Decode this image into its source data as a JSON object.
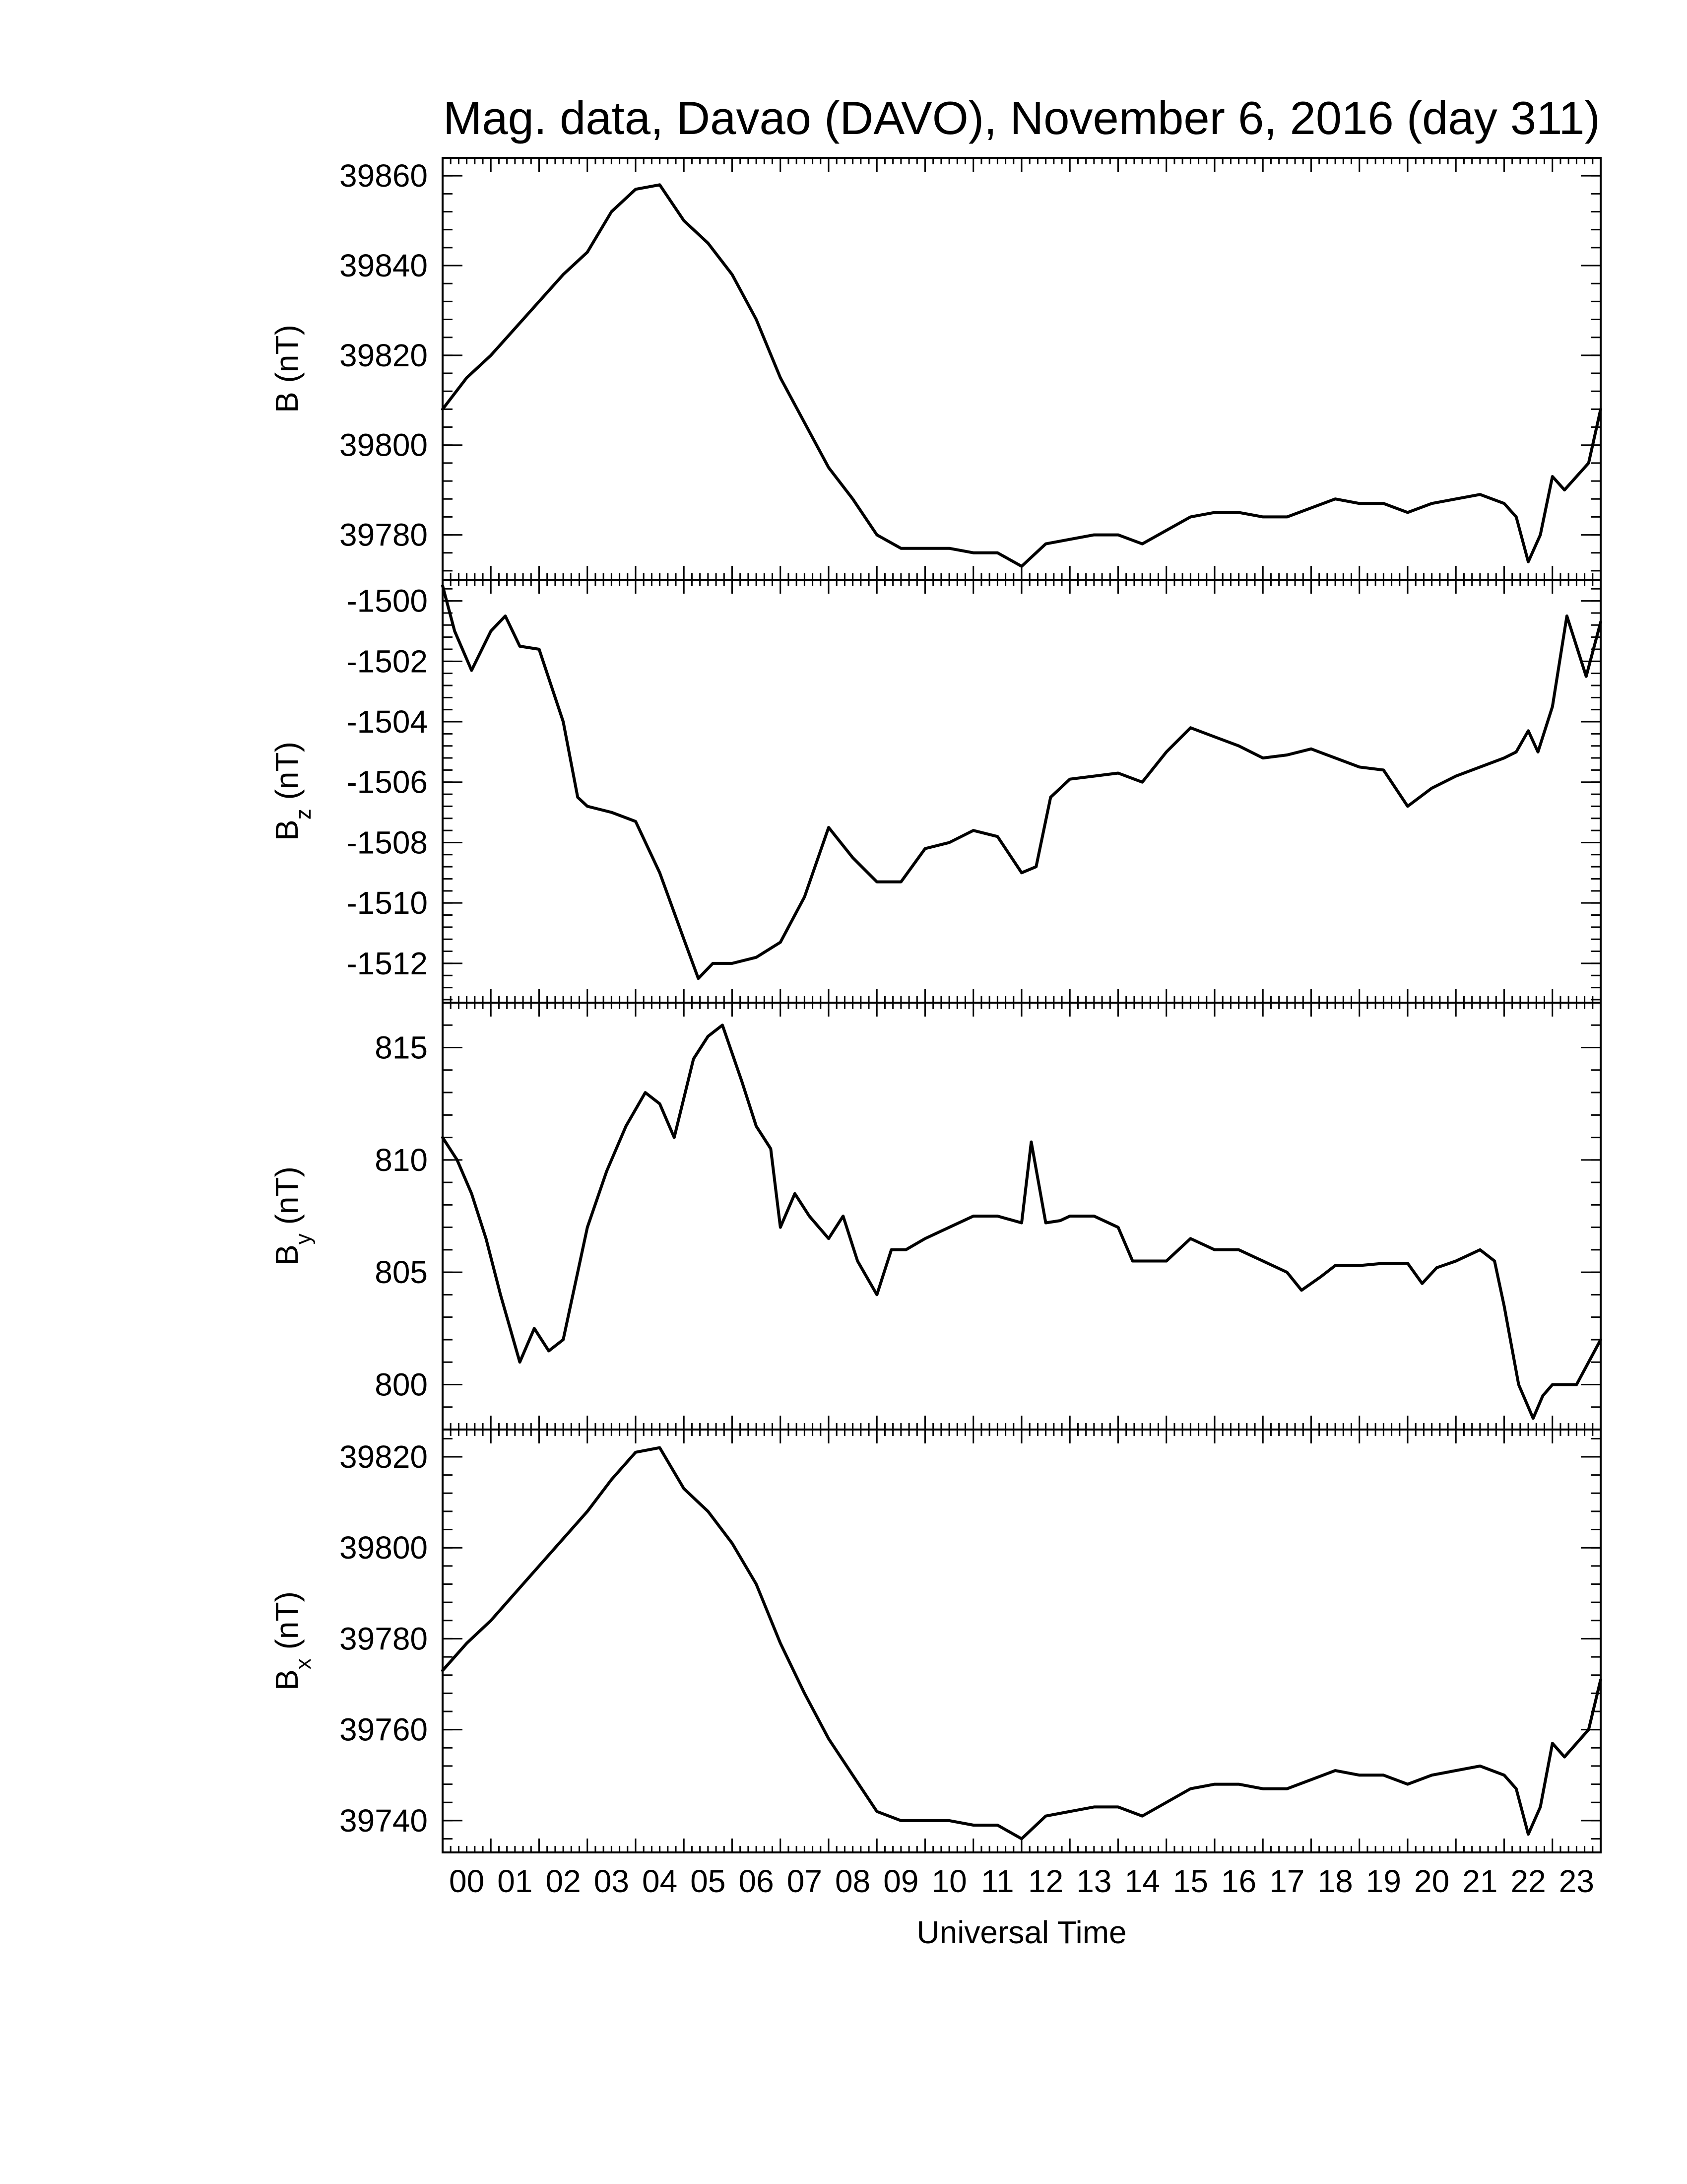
{
  "title": "Mag. data, Davao (DAVO), November 6, 2016 (day 311)",
  "xlabel": "Universal Time",
  "x_tick_labels": [
    "00",
    "01",
    "02",
    "03",
    "04",
    "05",
    "06",
    "07",
    "08",
    "09",
    "10",
    "11",
    "12",
    "13",
    "14",
    "15",
    "16",
    "17",
    "18",
    "19",
    "20",
    "21",
    "22",
    "23"
  ],
  "colors": {
    "line": "#000000",
    "axes": "#000000",
    "background": "#ffffff"
  },
  "chart_data": [
    {
      "type": "line",
      "ylabel": "B (nT)",
      "ylabel_main": "B",
      "ylabel_sub": "",
      "ylabel_unit": " (nT)",
      "xlim": [
        0,
        24
      ],
      "ylim": [
        39770,
        39864
      ],
      "yticks": [
        39780,
        39800,
        39820,
        39840,
        39860
      ],
      "ytick_labels": [
        "39780",
        "39800",
        "39820",
        "39840",
        "39860"
      ],
      "series": [
        {
          "x": [
            0,
            0.5,
            1,
            1.5,
            2,
            2.5,
            3,
            3.5,
            4,
            4.5,
            5,
            5.5,
            6,
            6.5,
            7,
            7.5,
            8,
            8.5,
            9,
            9.5,
            10,
            10.5,
            11,
            11.5,
            12,
            12.5,
            13,
            13.5,
            14,
            14.5,
            15,
            15.5,
            16,
            16.5,
            17,
            17.5,
            18,
            18.5,
            19,
            19.5,
            20,
            20.5,
            21,
            21.5,
            22,
            22.25,
            22.5,
            22.75,
            23,
            23.25,
            23.5,
            23.75,
            24
          ],
          "y": [
            39808,
            39815,
            39820,
            39826,
            39832,
            39838,
            39843,
            39852,
            39857,
            39858,
            39850,
            39845,
            39838,
            39828,
            39815,
            39805,
            39795,
            39788,
            39780,
            39777,
            39777,
            39777,
            39776,
            39776,
            39773,
            39778,
            39779,
            39780,
            39780,
            39778,
            39781,
            39784,
            39785,
            39785,
            39784,
            39784,
            39786,
            39788,
            39787,
            39787,
            39785,
            39787,
            39788,
            39789,
            39787,
            39784,
            39774,
            39780,
            39793,
            39790,
            39793,
            39796,
            39808
          ]
        }
      ]
    },
    {
      "type": "line",
      "ylabel": "Bz (nT)",
      "ylabel_main": "B",
      "ylabel_sub": "z",
      "ylabel_unit": " (nT)",
      "xlim": [
        0,
        24
      ],
      "ylim": [
        -1513.3,
        -1499.3
      ],
      "yticks": [
        -1500,
        -1502,
        -1504,
        -1506,
        -1508,
        -1510,
        -1512
      ],
      "ytick_labels": [
        "-1500",
        "-1502",
        "-1504",
        "-1506",
        "-1508",
        "-1510",
        "-1512"
      ],
      "series": [
        {
          "x": [
            0,
            0.25,
            0.6,
            1,
            1.3,
            1.6,
            2,
            2.5,
            2.8,
            3,
            3.5,
            4,
            4.5,
            5,
            5.3,
            5.6,
            6,
            6.5,
            7,
            7.5,
            8,
            8.5,
            9,
            9.5,
            10,
            10.5,
            11,
            11.5,
            12,
            12.3,
            12.6,
            13,
            13.5,
            14,
            14.5,
            15,
            15.5,
            16,
            16.5,
            17,
            17.5,
            18,
            18.5,
            19,
            19.5,
            20,
            20.5,
            21,
            21.5,
            22,
            22.25,
            22.5,
            22.7,
            23,
            23.3,
            23.7,
            24
          ],
          "y": [
            -1499.5,
            -1501,
            -1502.3,
            -1501,
            -1500.5,
            -1501.5,
            -1501.6,
            -1504,
            -1506.5,
            -1506.8,
            -1507,
            -1507.3,
            -1509,
            -1511.2,
            -1512.5,
            -1512,
            -1512,
            -1511.8,
            -1511.3,
            -1509.8,
            -1507.5,
            -1508.5,
            -1509.3,
            -1509.3,
            -1508.2,
            -1508,
            -1507.6,
            -1507.8,
            -1509,
            -1508.8,
            -1506.5,
            -1505.9,
            -1505.8,
            -1505.7,
            -1506,
            -1505,
            -1504.2,
            -1504.5,
            -1504.8,
            -1505.2,
            -1505.1,
            -1504.9,
            -1505.2,
            -1505.5,
            -1505.6,
            -1506.8,
            -1506.2,
            -1505.8,
            -1505.5,
            -1505.2,
            -1505,
            -1504.3,
            -1505,
            -1503.5,
            -1500.5,
            -1502.5,
            -1500.7
          ]
        }
      ]
    },
    {
      "type": "line",
      "ylabel": "By (nT)",
      "ylabel_main": "B",
      "ylabel_sub": "y",
      "ylabel_unit": " (nT)",
      "xlim": [
        0,
        24
      ],
      "ylim": [
        798,
        817
      ],
      "yticks": [
        800,
        805,
        810,
        815
      ],
      "ytick_labels": [
        "800",
        "805",
        "810",
        "815"
      ],
      "series": [
        {
          "x": [
            0,
            0.3,
            0.6,
            0.9,
            1.2,
            1.6,
            1.9,
            2.2,
            2.5,
            2.8,
            3,
            3.4,
            3.8,
            4.2,
            4.5,
            4.8,
            5.2,
            5.5,
            5.8,
            6.2,
            6.5,
            6.8,
            7,
            7.3,
            7.6,
            8,
            8.3,
            8.6,
            9,
            9.3,
            9.6,
            10,
            10.5,
            11,
            11.5,
            12,
            12.2,
            12.5,
            12.8,
            13,
            13.5,
            14,
            14.3,
            14.6,
            15,
            15.5,
            16,
            16.5,
            17,
            17.5,
            17.8,
            18.2,
            18.5,
            19,
            19.5,
            20,
            20.3,
            20.6,
            21,
            21.5,
            21.8,
            22,
            22.3,
            22.6,
            22.8,
            23,
            23.5,
            24
          ],
          "y": [
            811,
            810,
            808.5,
            806.5,
            804,
            801,
            802.5,
            801.5,
            802,
            805,
            807,
            809.5,
            811.5,
            813,
            812.5,
            811,
            814.5,
            815.5,
            816,
            813.5,
            811.5,
            810.5,
            807,
            808.5,
            807.5,
            806.5,
            807.5,
            805.5,
            804,
            806,
            806,
            806.5,
            807,
            807.5,
            807.5,
            807.2,
            810.8,
            807.2,
            807.3,
            807.5,
            807.5,
            807,
            805.5,
            805.5,
            805.5,
            806.5,
            806,
            806,
            805.5,
            805,
            804.2,
            804.8,
            805.3,
            805.3,
            805.4,
            805.4,
            804.5,
            805.2,
            805.5,
            806,
            805.5,
            803.5,
            800,
            798.5,
            799.5,
            800,
            800,
            802
          ]
        }
      ]
    },
    {
      "type": "line",
      "ylabel": "Bx (nT)",
      "ylabel_main": "B",
      "ylabel_sub": "x",
      "ylabel_unit": " (nT)",
      "xlim": [
        0,
        24
      ],
      "ylim": [
        39733,
        39826
      ],
      "yticks": [
        39740,
        39760,
        39780,
        39800,
        39820
      ],
      "ytick_labels": [
        "39740",
        "39760",
        "39780",
        "39800",
        "39820"
      ],
      "series": [
        {
          "x": [
            0,
            0.5,
            1,
            1.5,
            2,
            2.5,
            3,
            3.5,
            4,
            4.5,
            5,
            5.5,
            6,
            6.5,
            7,
            7.5,
            8,
            8.5,
            9,
            9.5,
            10,
            10.5,
            11,
            11.5,
            12,
            12.5,
            13,
            13.5,
            14,
            14.5,
            15,
            15.5,
            16,
            16.5,
            17,
            17.5,
            18,
            18.5,
            19,
            19.5,
            20,
            20.5,
            21,
            21.5,
            22,
            22.25,
            22.5,
            22.75,
            23,
            23.25,
            23.5,
            23.75,
            24
          ],
          "y": [
            39773,
            39779,
            39784,
            39790,
            39796,
            39802,
            39808,
            39815,
            39821,
            39822,
            39813,
            39808,
            39801,
            39792,
            39779,
            39768,
            39758,
            39750,
            39742,
            39740,
            39740,
            39740,
            39739,
            39739,
            39736,
            39741,
            39742,
            39743,
            39743,
            39741,
            39744,
            39747,
            39748,
            39748,
            39747,
            39747,
            39749,
            39751,
            39750,
            39750,
            39748,
            39750,
            39751,
            39752,
            39750,
            39747,
            39737,
            39743,
            39757,
            39754,
            39757,
            39760,
            39771
          ]
        }
      ]
    }
  ]
}
